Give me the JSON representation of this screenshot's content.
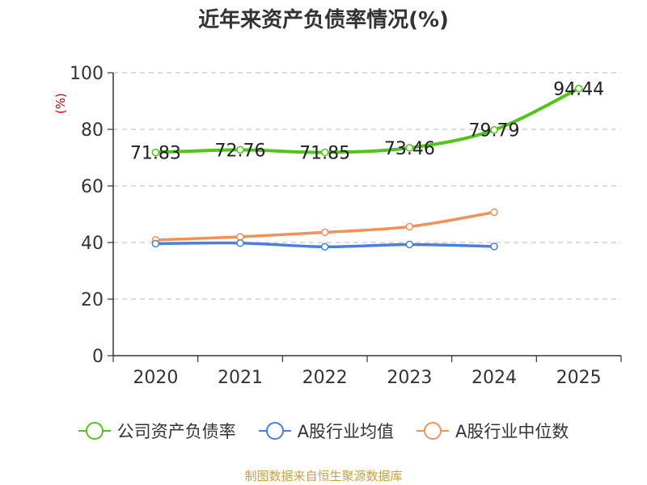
{
  "chart_data": {
    "type": "line",
    "title": "近年来资产负债率情况(%)",
    "ylabel": "(%)",
    "xlabel": "",
    "categories": [
      "2020",
      "2021",
      "2022",
      "2023",
      "2024",
      "2025"
    ],
    "ylim": [
      0,
      100
    ],
    "yticks": [
      0,
      20,
      40,
      60,
      80,
      100
    ],
    "grid": true,
    "legend_position": "bottom",
    "series": [
      {
        "name": "公司资产负债率",
        "color": "#52c41a",
        "values": [
          71.83,
          72.76,
          71.85,
          73.46,
          79.79,
          94.44
        ],
        "labels": [
          "71.83",
          "72.76",
          "71.85",
          "73.46",
          "79.79",
          "94.44"
        ]
      },
      {
        "name": "A股行业均值",
        "color": "#4a7ee0",
        "values": [
          39.6,
          39.8,
          38.5,
          39.3,
          38.6,
          null
        ],
        "labels": []
      },
      {
        "name": "A股行业中位数",
        "color": "#f5905a",
        "values": [
          40.9,
          42.0,
          43.6,
          45.6,
          50.7,
          null
        ],
        "labels": []
      }
    ]
  },
  "footer": {
    "source": "制图数据来自恒生聚源数据库"
  }
}
